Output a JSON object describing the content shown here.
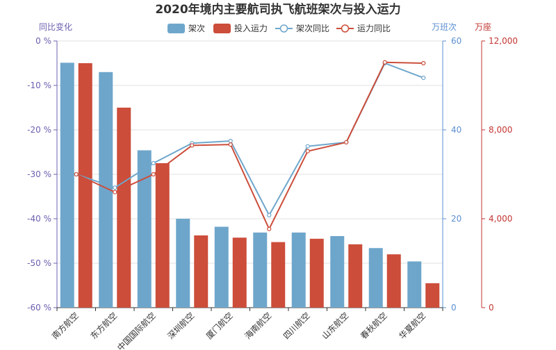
{
  "chart_data": {
    "type": "bar",
    "title": "2020年境内主要航司执飞航班架次与投入运力",
    "categories": [
      "南方航空",
      "东方航空",
      "中国国际航空",
      "深圳航空",
      "厦门航空",
      "海南航空",
      "四川航空",
      "山东航空",
      "春秋航空",
      "华夏航空"
    ],
    "legend": {
      "position": "top",
      "items": [
        "架次",
        "投入运力",
        "架次同比",
        "运力同比"
      ]
    },
    "series": [
      {
        "name": "架次",
        "type": "bar",
        "axis": "flights",
        "unit": "万班次",
        "color": "#6ea6cb",
        "values": [
          55.1,
          53.0,
          35.4,
          20.0,
          18.2,
          16.9,
          16.9,
          16.1,
          13.4,
          10.4
        ]
      },
      {
        "name": "投入运力",
        "type": "bar",
        "axis": "capacity",
        "unit": "万座",
        "color": "#cc4d3a",
        "values": [
          11000,
          9000,
          6500,
          3250,
          3150,
          2950,
          3100,
          2850,
          2400,
          1100
        ]
      },
      {
        "name": "架次同比",
        "type": "line",
        "axis": "yoy",
        "unit": "%",
        "color": "#6ea6cb",
        "values": [
          -30.0,
          -33.0,
          -27.5,
          -23.0,
          -22.5,
          -39.2,
          -23.7,
          -22.8,
          -5.0,
          -8.3
        ]
      },
      {
        "name": "运力同比",
        "type": "line",
        "axis": "yoy",
        "unit": "%",
        "color": "#cc4d3a",
        "values": [
          -30.0,
          -34.0,
          -30.0,
          -23.5,
          -23.3,
          -42.3,
          -24.8,
          -22.8,
          -4.8,
          -5.0
        ]
      }
    ],
    "axes": {
      "yoy": {
        "name": "同比变化",
        "min": -60,
        "max": 0,
        "ticks": [
          0,
          -10,
          -20,
          -30,
          -40,
          -50,
          -60
        ],
        "tick_suffix": " %",
        "color": "#6b5fb0"
      },
      "flights": {
        "name": "万班次",
        "min": 0,
        "max": 60,
        "ticks": [
          0,
          20,
          40,
          60
        ],
        "color": "#5b8fd0"
      },
      "capacity": {
        "name": "万座",
        "min": 0,
        "max": 12000,
        "ticks": [
          0,
          4000,
          8000,
          12000
        ],
        "tick_labels": [
          "0",
          "4,000",
          "8,000",
          "12,000"
        ],
        "color": "#c23531"
      }
    },
    "grid": true
  }
}
